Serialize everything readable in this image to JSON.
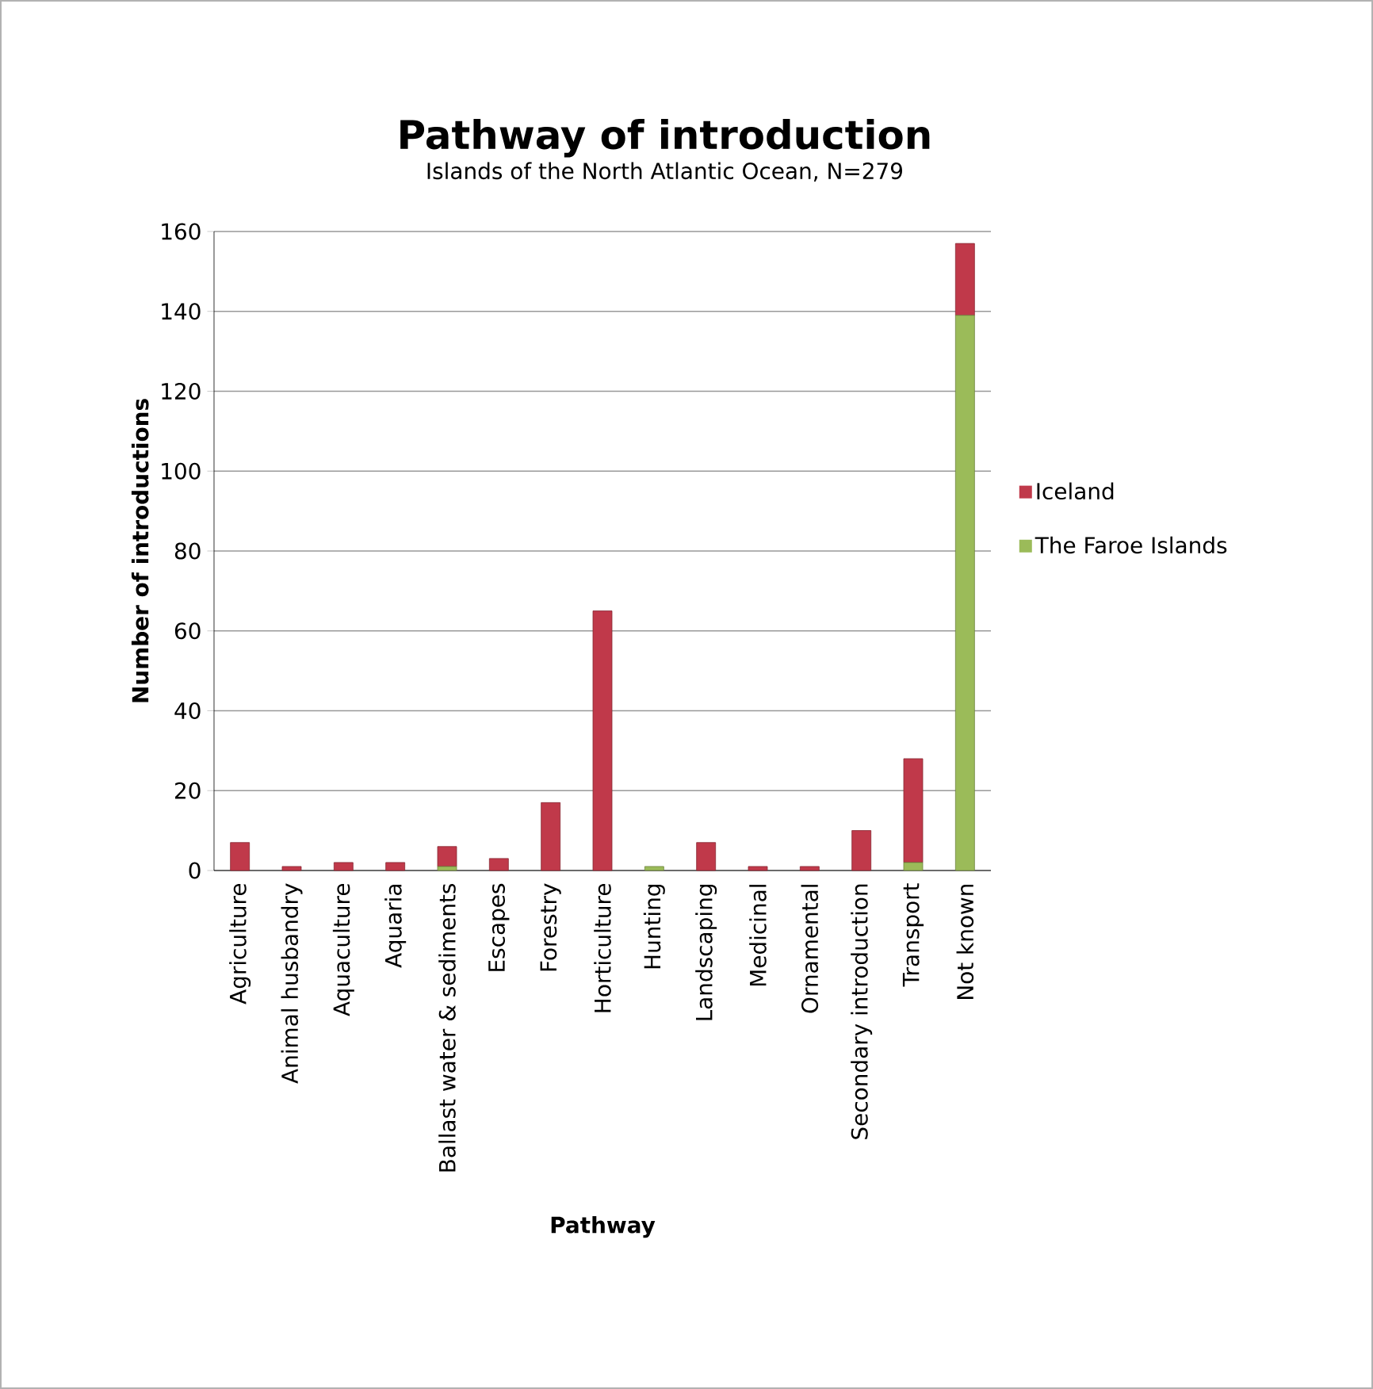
{
  "chart_data": {
    "type": "bar",
    "title": "Pathway of introduction",
    "subtitle": "Islands of the North Atlantic Ocean, N=279",
    "xlabel": "Pathway",
    "ylabel": "Number of introductions",
    "categories": [
      "Agriculture",
      "Animal husbandry",
      "Aquaculture",
      "Aquaria",
      "Ballast water & sediments",
      "Escapes",
      "Forestry",
      "Horticulture",
      "Hunting",
      "Landscaping",
      "Medicinal",
      "Ornamental",
      "Secondary introduction",
      "Transport",
      "Not known"
    ],
    "stacked": true,
    "series": [
      {
        "name": "The Faroe Islands",
        "color": "#9bbb59",
        "values": [
          0,
          0,
          0,
          0,
          1,
          0,
          0,
          0,
          1,
          0,
          0,
          0,
          0,
          2,
          139
        ]
      },
      {
        "name": "Iceland",
        "color": "#c0394a",
        "values": [
          7,
          1,
          2,
          2,
          5,
          3,
          17,
          65,
          0,
          7,
          1,
          1,
          10,
          26,
          18
        ]
      }
    ],
    "ylim": [
      0,
      160
    ],
    "yticks": [
      0,
      20,
      40,
      60,
      80,
      100,
      120,
      140,
      160
    ],
    "grid": "y",
    "legend": "right"
  }
}
